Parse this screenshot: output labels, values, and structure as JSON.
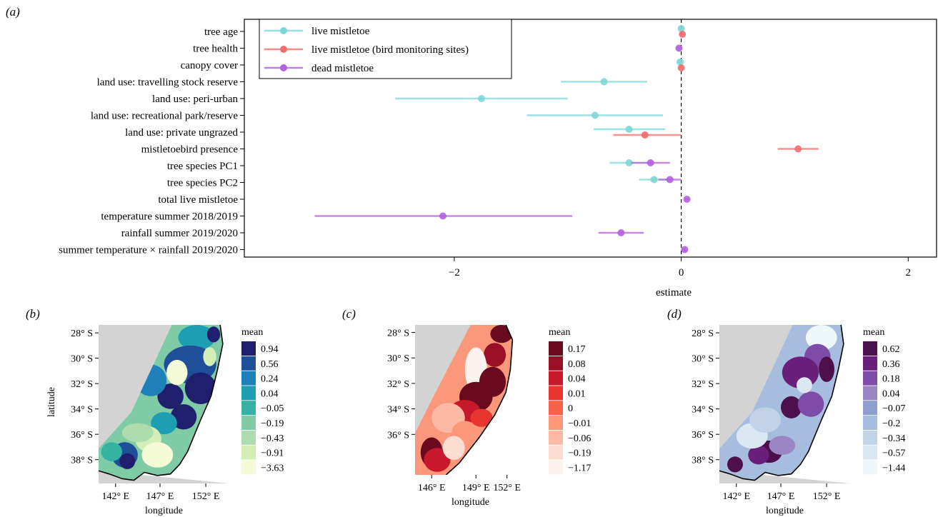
{
  "chart_data": [
    {
      "panel": "(a)",
      "type": "scatter",
      "subtype": "coefficient-plot",
      "xlabel": "estimate",
      "xticks": [
        "−2",
        "0",
        "2"
      ],
      "xlim": [
        -3.85,
        2.25
      ],
      "reference_line": 0,
      "categories": [
        "tree age",
        "tree health",
        "canopy cover",
        "land use: travelling stock reserve",
        "land use: peri-urban",
        "land use: recreational park/reserve",
        "land use: private ungrazed",
        "mistletoebird presence",
        "tree species PC1",
        "tree species PC2",
        "total live mistletoe",
        "temperature summer 2018/2019",
        "rainfall summer 2019/2020",
        "summer temperature × rainfall 2019/2020"
      ],
      "legend_position": "top-left",
      "series": [
        {
          "name": "live mistletoe",
          "color": "#7fd6d6",
          "points": [
            {
              "category": "tree age",
              "estimate": 0.0,
              "lower": -0.02,
              "upper": 0.02
            },
            {
              "category": "canopy cover",
              "estimate": -0.01,
              "lower": -0.03,
              "upper": 0.01
            },
            {
              "category": "land use: travelling stock reserve",
              "estimate": -0.68,
              "lower": -1.06,
              "upper": -0.3
            },
            {
              "category": "land use: peri-urban",
              "estimate": -1.76,
              "lower": -2.52,
              "upper": -1.0
            },
            {
              "category": "land use: recreational park/reserve",
              "estimate": -0.76,
              "lower": -1.36,
              "upper": -0.16
            },
            {
              "category": "land use: private ungrazed",
              "estimate": -0.46,
              "lower": -0.77,
              "upper": -0.14
            },
            {
              "category": "tree species PC1",
              "estimate": -0.46,
              "lower": -0.63,
              "upper": -0.3
            },
            {
              "category": "tree species PC2",
              "estimate": -0.24,
              "lower": -0.37,
              "upper": -0.12
            }
          ]
        },
        {
          "name": "live mistletoe (bird monitoring sites)",
          "color": "#f26d6d",
          "points": [
            {
              "category": "tree age",
              "estimate": 0.01,
              "lower": -0.01,
              "upper": 0.03
            },
            {
              "category": "canopy cover",
              "estimate": 0.0,
              "lower": -0.02,
              "upper": 0.02
            },
            {
              "category": "land use: private ungrazed",
              "estimate": -0.32,
              "lower": -0.6,
              "upper": 0.0
            },
            {
              "category": "mistletoebird presence",
              "estimate": 1.03,
              "lower": 0.85,
              "upper": 1.21
            }
          ]
        },
        {
          "name": "dead mistletoe",
          "color": "#b25fe0",
          "points": [
            {
              "category": "tree health",
              "estimate": -0.02,
              "lower": -0.04,
              "upper": 0.0
            },
            {
              "category": "tree species PC1",
              "estimate": -0.27,
              "lower": -0.44,
              "upper": -0.1
            },
            {
              "category": "tree species PC2",
              "estimate": -0.1,
              "lower": -0.2,
              "upper": 0.0
            },
            {
              "category": "total live mistletoe",
              "estimate": 0.05,
              "lower": 0.03,
              "upper": 0.07
            },
            {
              "category": "temperature summer 2018/2019",
              "estimate": -2.1,
              "lower": -3.23,
              "upper": -0.96
            },
            {
              "category": "rainfall summer 2019/2020",
              "estimate": -0.53,
              "lower": -0.73,
              "upper": -0.33
            },
            {
              "category": "summer temperature × rainfall 2019/2020",
              "estimate": 0.03,
              "lower": 0.01,
              "upper": 0.05
            }
          ]
        }
      ]
    },
    {
      "panel": "(b)",
      "type": "heatmap",
      "subtype": "map",
      "xlabel": "longitude",
      "ylabel": "latitude",
      "xticks": [
        "142° E",
        "147° E",
        "152° E"
      ],
      "yticks": [
        "28° S",
        "30° S",
        "32° S",
        "34° S",
        "36° S",
        "38° S"
      ],
      "legend_title": "mean",
      "legend_labels": [
        "0.94",
        "0.56",
        "0.24",
        "0.04",
        "−0.05",
        "−0.19",
        "−0.43",
        "−0.91",
        "−3.63"
      ],
      "legend_colors": [
        "#1f1f6e",
        "#1f4f99",
        "#1f7fb8",
        "#1e9eb3",
        "#35b2a4",
        "#7fcba6",
        "#aedcaf",
        "#d4eeb8",
        "#f6fbd7"
      ]
    },
    {
      "panel": "(c)",
      "type": "heatmap",
      "subtype": "map",
      "xlabel": "longitude",
      "xticks": [
        "146° E",
        "149° E",
        "152° E"
      ],
      "yticks": [
        "28° S",
        "30° S",
        "32° S",
        "34° S",
        "36° S"
      ],
      "legend_title": "mean",
      "legend_labels": [
        "0.17",
        "0.08",
        "0.04",
        "0.01",
        "0",
        "−0.01",
        "−0.06",
        "−0.19",
        "−1.17"
      ],
      "legend_colors": [
        "#6a0a1e",
        "#990f26",
        "#c8182c",
        "#e8352f",
        "#f86248",
        "#fb977a",
        "#fcb9a4",
        "#fddcd1",
        "#fcf3ef"
      ]
    },
    {
      "panel": "(d)",
      "type": "heatmap",
      "subtype": "map",
      "xlabel": "longitude",
      "xticks": [
        "142° E",
        "147° E",
        "152° E"
      ],
      "yticks": [
        "28° S",
        "30° S",
        "32° S",
        "34° S",
        "36° S",
        "38° S"
      ],
      "legend_title": "mean",
      "legend_labels": [
        "0.62",
        "0.36",
        "0.18",
        "0.04",
        "−0.07",
        "−0.2",
        "−0.34",
        "−0.57",
        "−1.44"
      ],
      "legend_colors": [
        "#4d0f4d",
        "#6a1f7a",
        "#7e4ba8",
        "#9a86c4",
        "#8f9fcf",
        "#a7bddf",
        "#c2d3e8",
        "#dbe8f2",
        "#eef7fa"
      ]
    }
  ]
}
